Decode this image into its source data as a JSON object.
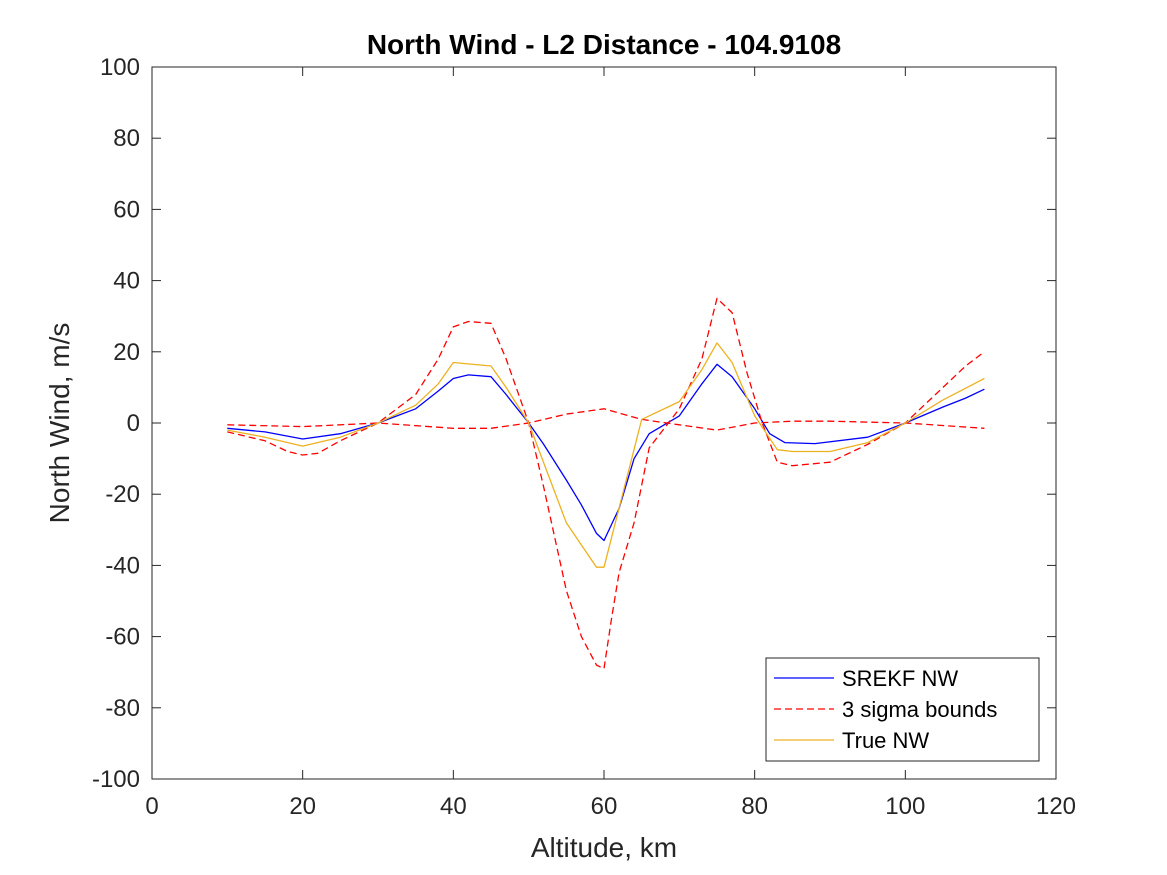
{
  "chart_data": {
    "type": "line",
    "title": "North Wind - L2 Distance - 104.9108",
    "xlabel": "Altitude, km",
    "ylabel": "North Wind, m/s",
    "xlim": [
      0,
      120
    ],
    "ylim": [
      -100,
      100
    ],
    "xticks": [
      0,
      20,
      40,
      60,
      80,
      100,
      120
    ],
    "yticks": [
      -100,
      -80,
      -60,
      -40,
      -20,
      0,
      20,
      40,
      60,
      80,
      100
    ],
    "grid": false,
    "legend_position": "bottom-right",
    "series": [
      {
        "name": "SREKF NW",
        "color": "#0000ff",
        "style": "solid",
        "x": [
          10,
          15,
          20,
          25,
          30,
          35,
          38,
          40,
          42,
          45,
          47,
          50,
          52,
          55,
          57,
          59,
          60,
          62,
          64,
          66,
          70,
          73,
          75,
          77,
          80,
          82,
          84,
          88,
          95,
          100,
          105,
          108,
          110.5
        ],
        "y": [
          -1.5,
          -2.5,
          -4.5,
          -3,
          0,
          4,
          9,
          12.5,
          13.5,
          13,
          8,
          0,
          -6,
          -16,
          -23,
          -31,
          -33,
          -24,
          -10,
          -3,
          2,
          11,
          16.5,
          13,
          4,
          -3,
          -5.5,
          -5.8,
          -4,
          0,
          4.5,
          7,
          9.5
        ]
      },
      {
        "name": "3 sigma bounds",
        "color": "#ff0000",
        "style": "dashed",
        "x": [
          10,
          15,
          18,
          20,
          22,
          25,
          30,
          35,
          38,
          40,
          42,
          45,
          47,
          50,
          52,
          55,
          57,
          59,
          60,
          61,
          62,
          64,
          66,
          70,
          73,
          75,
          77,
          79,
          81,
          83,
          85,
          90,
          95,
          100,
          105,
          108,
          110.5
        ],
        "y": [
          -2.5,
          -5,
          -8,
          -9,
          -8.5,
          -5,
          0,
          8,
          18,
          27,
          28.5,
          28,
          18,
          0,
          -18,
          -47,
          -60,
          -68,
          -69,
          -55,
          -42,
          -28,
          -7,
          4,
          18,
          35,
          31,
          14,
          0,
          -11,
          -12,
          -11,
          -6,
          0,
          10,
          16,
          20
        ]
      },
      {
        "name": "",
        "color": "#ff0000",
        "style": "dashed",
        "x": [
          10,
          20,
          30,
          40,
          45,
          50,
          55,
          60,
          65,
          70,
          75,
          80,
          85,
          90,
          100,
          110.5
        ],
        "y": [
          -0.5,
          -1,
          0,
          -1.5,
          -1.5,
          0,
          2.5,
          4,
          1,
          -0.5,
          -2,
          0,
          0.5,
          0.5,
          0,
          -1.5
        ]
      },
      {
        "name": "True NW",
        "color": "#edb120",
        "style": "solid",
        "x": [
          10,
          15,
          20,
          25,
          30,
          35,
          38,
          40,
          45,
          47,
          50,
          55,
          59,
          60,
          65,
          70,
          73,
          75,
          77,
          80,
          83,
          85,
          90,
          95,
          100,
          105,
          110.5
        ],
        "y": [
          -2,
          -4,
          -6.5,
          -4,
          0,
          5,
          11,
          17,
          16,
          10,
          0,
          -28,
          -40.5,
          -40.5,
          1,
          6,
          15,
          22.5,
          17,
          2,
          -7.5,
          -8,
          -8,
          -5.5,
          0,
          6.5,
          12.5
        ]
      }
    ]
  }
}
